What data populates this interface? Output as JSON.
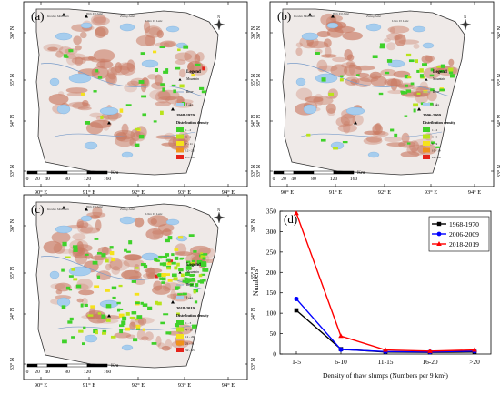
{
  "maps": [
    {
      "panel": "(a)",
      "period": "1968-1970",
      "legend_title": "Legend",
      "legend_items": [
        "Mountain",
        "River",
        "Lake"
      ],
      "density_title": "Distribution density",
      "classes": [
        {
          "label": "1 - 2",
          "color": "#3fd12a"
        },
        {
          "label": "3 - 6",
          "color": "#b9e31b"
        },
        {
          "label": "7 - 11",
          "color": "#f5e21c"
        },
        {
          "label": "12 - 22",
          "color": "#f0921a"
        },
        {
          "label": "23 - 28",
          "color": "#e5231a"
        }
      ],
      "density_level": 2
    },
    {
      "panel": "(b)",
      "period": "2006-2009",
      "legend_title": "Legend",
      "legend_items": [
        "Mountain",
        "River",
        "Lake"
      ],
      "density_title": "Distribution density",
      "classes": [
        {
          "label": "1 - 2",
          "color": "#3fd12a"
        },
        {
          "label": "3 - 5",
          "color": "#b9e31b"
        },
        {
          "label": "6 - 9",
          "color": "#f5e21c"
        },
        {
          "label": "10 - 19",
          "color": "#f0921a"
        },
        {
          "label": "20 - 29",
          "color": "#e5231a"
        }
      ],
      "density_level": 2
    },
    {
      "panel": "(c)",
      "period": "2018-2019",
      "legend_title": "Legend",
      "legend_items": [
        "Mountain",
        "River",
        "Lake"
      ],
      "density_title": "Distribution density",
      "classes": [
        {
          "label": "1 - 3",
          "color": "#3fd12a"
        },
        {
          "label": "4 - 10",
          "color": "#b9e31b"
        },
        {
          "label": "11 - 20",
          "color": "#f5e21c"
        },
        {
          "label": "21 - 31",
          "color": "#f0921a"
        },
        {
          "label": "32 - 43",
          "color": "#e5231a"
        }
      ],
      "density_level": 3
    }
  ],
  "map_axes": {
    "lon_ticks": [
      "90° E",
      "91° E",
      "92° E",
      "93° E",
      "94° E"
    ],
    "lat_ticks": [
      "36° N",
      "35° N",
      "34° N",
      "33° N"
    ]
  },
  "scale_bar": {
    "labels": [
      "0",
      "20",
      "40",
      "80",
      "120",
      "160"
    ],
    "unit": "Km"
  },
  "north_label": "N",
  "place_labels": [
    "Kunlun Mountain",
    "Hoh Xil Lake",
    "Zonag Lake",
    "Ulan Ul Lake"
  ],
  "colors": {
    "lake": "#a6cdee",
    "terrain": "#efeae8",
    "mountain": "#c97a63",
    "black": "#000000",
    "blue": "#0000ff",
    "red": "#ff0000"
  },
  "chart_data": {
    "panel": "(d)",
    "type": "line",
    "categories": [
      "1-5",
      "6-10",
      "11-15",
      "16-20",
      ">20"
    ],
    "series": [
      {
        "name": "1968-1970",
        "color": "#000000",
        "marker": "square",
        "values": [
          107,
          12,
          5,
          4,
          5
        ]
      },
      {
        "name": "2006-2009",
        "color": "#0000ff",
        "marker": "circle",
        "values": [
          135,
          11,
          6,
          5,
          7
        ]
      },
      {
        "name": "2018-2019",
        "color": "#ff0000",
        "marker": "triangle",
        "values": [
          345,
          44,
          10,
          7,
          10
        ]
      }
    ],
    "xlabel": "Density of thaw slumps (Numbers per 9 km²)",
    "ylabel": "Numbers",
    "ylim": [
      0,
      350
    ],
    "yticks": [
      0,
      50,
      100,
      150,
      200,
      250,
      300,
      350
    ],
    "grid": false,
    "legend_position": "top-right"
  }
}
